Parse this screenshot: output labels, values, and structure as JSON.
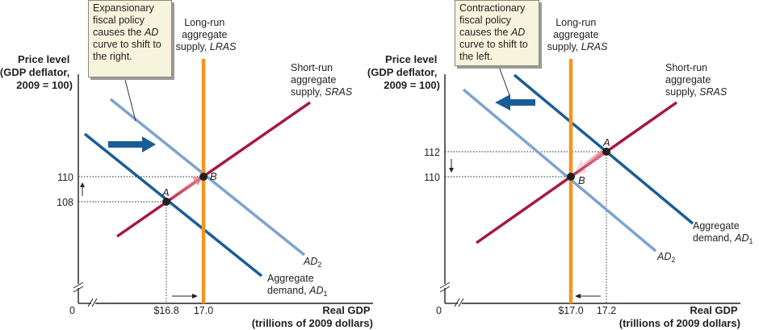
{
  "colors": {
    "lras": "#f7941d",
    "sras": "#a6193e",
    "ad_dark": "#1a5d96",
    "ad_light": "#7da3cf",
    "shift_arrow": "#1a5d96",
    "callout_bg": "#f6f4dd"
  },
  "icons": [
    "right-shift-arrow-icon",
    "left-shift-arrow-icon",
    "up-arrow-icon",
    "down-arrow-icon"
  ],
  "left_panel": {
    "callout": [
      "Expansionary",
      "fiscal policy",
      "causes the AD",
      "curve to shift to",
      "the right."
    ],
    "ylabel": [
      "Price level",
      "(GDP deflator,",
      "2009 = 100)"
    ],
    "xlabel": [
      "Real GDP",
      "(trillions of 2009 dollars)"
    ],
    "origin": "0",
    "lras_label": [
      "Long-run",
      "aggregate",
      "supply, LRAS"
    ],
    "sras_label": [
      "Short-run",
      "aggregate",
      "supply, SRAS"
    ],
    "ad1_label": [
      "Aggregate",
      "demand, AD1"
    ],
    "ad2_label": "AD2",
    "point_a": "A",
    "point_b": "B",
    "y_ticks": [
      "110",
      "108"
    ],
    "x_ticks": [
      "$16.8",
      "17.0"
    ]
  },
  "right_panel": {
    "callout": [
      "Contractionary",
      "fiscal policy",
      "causes the AD",
      "curve to shift to",
      "the left."
    ],
    "ylabel": [
      "Price level",
      "(GDP deflator,",
      "2009 = 100)"
    ],
    "xlabel": [
      "Real GDP",
      "(trillions of 2009 dollars)"
    ],
    "origin": "0",
    "lras_label": [
      "Long-run",
      "aggregate",
      "supply, LRAS"
    ],
    "sras_label": [
      "Short-run",
      "aggregate",
      "supply, SRAS"
    ],
    "ad1_label": [
      "Aggregate",
      "demand, AD1"
    ],
    "ad2_label": "AD2",
    "point_a": "A",
    "point_b": "B",
    "y_ticks": [
      "112",
      "110"
    ],
    "x_ticks": [
      "$17.0",
      "17.2"
    ]
  }
}
